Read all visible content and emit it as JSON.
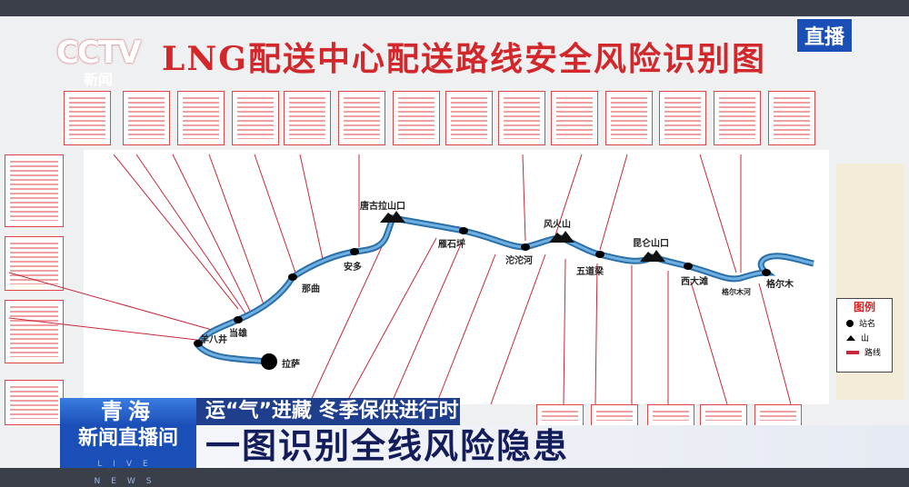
{
  "broadcast": {
    "live_badge": "直播",
    "channel_logo": "CCTV 新闻",
    "channel_sub": "新闻"
  },
  "poster": {
    "title": "LNG配送中心配送路线安全风险识别图",
    "stations": [
      {
        "name": "拉萨"
      },
      {
        "name": "羊八井"
      },
      {
        "name": "当雄"
      },
      {
        "name": "那曲"
      },
      {
        "name": "安多"
      },
      {
        "name": "唐古拉山口"
      },
      {
        "name": "雁石坪"
      },
      {
        "name": "沱沱河"
      },
      {
        "name": "风火山"
      },
      {
        "name": "五道梁"
      },
      {
        "name": "昆仑山口"
      },
      {
        "name": "西大滩"
      },
      {
        "name": "格尔木河"
      },
      {
        "name": "格尔木"
      }
    ],
    "legend": {
      "title": "图例",
      "items": [
        {
          "icon": "station-dot-icon",
          "label": "站名"
        },
        {
          "icon": "mountain-icon",
          "label": "山"
        },
        {
          "icon": "route-line-icon",
          "label": "路线"
        }
      ]
    },
    "colors": {
      "route": "#4a90c8",
      "arrows": "#c8283a",
      "title": "#d2282c"
    }
  },
  "ticker": {
    "location": "青海",
    "subtitle": "运“气”进藏 冬季保供进行时",
    "program": "新闻直播间",
    "program_en": "LIVE NEWS",
    "headline": "一图识别全线风险隐患"
  }
}
